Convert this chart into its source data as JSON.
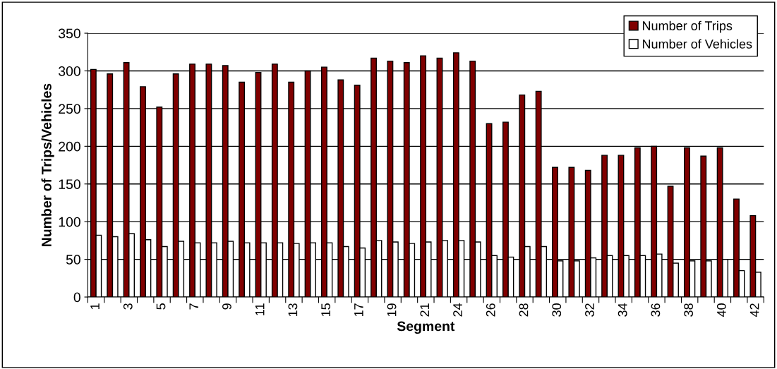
{
  "chart_data": {
    "type": "bar",
    "xlabel": "Segment",
    "ylabel": "Number of Trips/Vehicles",
    "categories": [
      "1",
      null,
      "3",
      null,
      "5",
      null,
      "7",
      null,
      "9",
      null,
      "11",
      null,
      "13",
      null,
      "15",
      null,
      "17",
      null,
      "19",
      null,
      "21",
      null,
      "24",
      null,
      "26",
      null,
      "28",
      null,
      "30",
      null,
      "32",
      null,
      "34",
      null,
      "36",
      null,
      "38",
      null,
      "40",
      null,
      "42"
    ],
    "series": [
      {
        "name": "Number of Trips",
        "color": "#800000",
        "values": [
          302,
          296,
          311,
          279,
          252,
          296,
          309,
          309,
          307,
          285,
          298,
          309,
          285,
          300,
          305,
          288,
          281,
          317,
          313,
          311,
          320,
          317,
          324,
          313,
          230,
          232,
          268,
          273,
          172,
          172,
          168,
          188,
          188,
          198,
          200,
          147,
          198,
          187,
          198,
          130,
          108
        ]
      },
      {
        "name": "Number of Vehicles",
        "color": "#ffffff",
        "values": [
          82,
          80,
          84,
          76,
          67,
          74,
          72,
          72,
          74,
          72,
          72,
          72,
          71,
          72,
          72,
          67,
          65,
          75,
          73,
          71,
          73,
          75,
          75,
          73,
          55,
          53,
          67,
          67,
          48,
          48,
          52,
          55,
          55,
          55,
          57,
          45,
          48,
          48,
          50,
          35,
          33
        ]
      }
    ],
    "ylim": [
      0,
      350
    ],
    "yticks": [
      0,
      50,
      100,
      150,
      200,
      250,
      300,
      350
    ],
    "grid": "y",
    "legend": "top right"
  }
}
